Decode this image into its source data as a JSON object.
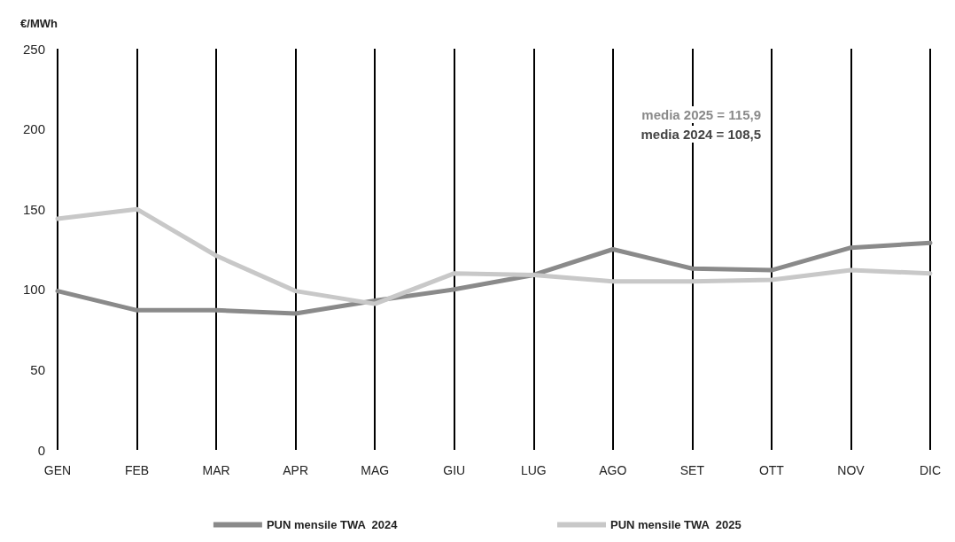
{
  "chart_data": {
    "type": "line",
    "ylabel": "€/MWh",
    "categories": [
      "GEN",
      "FEB",
      "MAR",
      "APR",
      "MAG",
      "GIU",
      "LUG",
      "AGO",
      "SET",
      "OTT",
      "NOV",
      "DIC"
    ],
    "series": [
      {
        "name": "PUN mensile TWA  2024",
        "color": "#8a8a8a",
        "values": [
          99,
          87,
          87,
          85,
          93,
          100,
          109,
          125,
          113,
          112,
          126,
          129
        ]
      },
      {
        "name": "PUN mensile TWA  2025",
        "color": "#c8c8c8",
        "values": [
          144,
          150,
          121,
          99,
          91,
          110,
          109,
          105,
          105,
          106,
          112,
          110
        ]
      }
    ],
    "ylim": [
      0,
      250
    ],
    "yticks": [
      0,
      50,
      100,
      150,
      200,
      250
    ],
    "grid": "x",
    "legend": "bottom",
    "marker": "none",
    "line_style": "solid",
    "annotations": [
      "media 2025 = 115,9",
      "media 2024 = 108,5"
    ]
  }
}
